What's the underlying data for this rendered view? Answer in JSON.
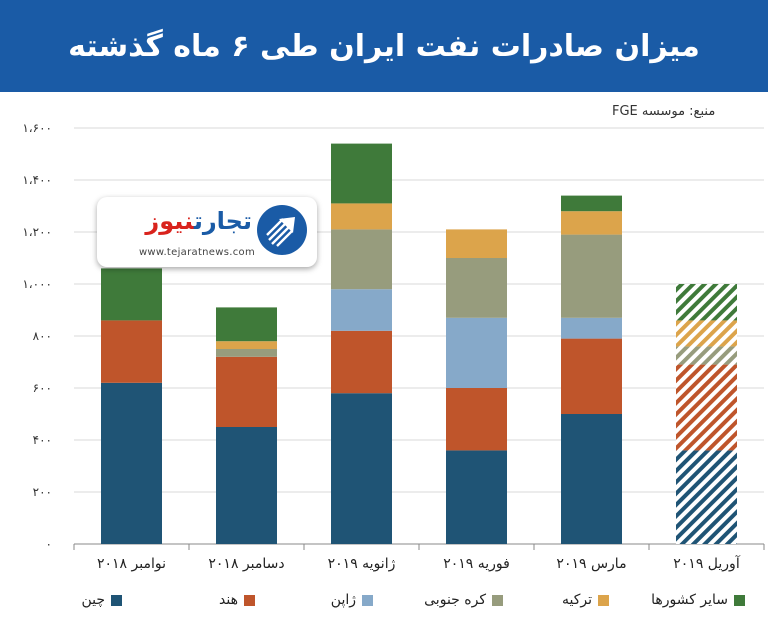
{
  "header": {
    "title": "میزان صادرات نفت ایران طی ۶ ماه گذشته"
  },
  "source": "منبع: موسسه FGE",
  "logo": {
    "name_part1": "تجارت",
    "name_part2": "نیوز",
    "url": "www.tejaratnews.com"
  },
  "colors": {
    "header_bg": "#1a5ba6",
    "china": "#1f5475",
    "india": "#bf552b",
    "japan": "#86a9c9",
    "korea": "#979c7d",
    "turkey": "#dca44b",
    "others": "#3f7a3a"
  },
  "chart_data": {
    "type": "bar",
    "stacked": true,
    "categories": [
      "نوامبر ۲۰۱۸",
      "دسامبر ۲۰۱۸",
      "ژانویه ۲۰۱۹",
      "فوریه ۲۰۱۹",
      "مارس ۲۰۱۹",
      "آوریل ۲۰۱۹"
    ],
    "projected_category": "آوریل ۲۰۱۹",
    "series": [
      {
        "name": "چین",
        "key": "china",
        "values": [
          620,
          450,
          580,
          360,
          500,
          360
        ]
      },
      {
        "name": "هند",
        "key": "india",
        "values": [
          240,
          270,
          240,
          240,
          290,
          330
        ]
      },
      {
        "name": "ژاپن",
        "key": "japan",
        "values": [
          0,
          0,
          160,
          270,
          80,
          0
        ]
      },
      {
        "name": "کره جنوبی",
        "key": "korea",
        "values": [
          0,
          30,
          230,
          230,
          320,
          70
        ]
      },
      {
        "name": "ترکیه",
        "key": "turkey",
        "values": [
          0,
          30,
          100,
          110,
          90,
          100
        ]
      },
      {
        "name": "سایر کشورها",
        "key": "others",
        "values": [
          200,
          130,
          230,
          0,
          60,
          140
        ]
      }
    ],
    "ylim": [
      0,
      1600
    ],
    "yticks": [
      0,
      200,
      400,
      600,
      800,
      1000,
      1200,
      1400,
      1600
    ],
    "ytick_labels": [
      "۰",
      "۲۰۰",
      "۴۰۰",
      "۶۰۰",
      "۸۰۰",
      "۱،۰۰۰",
      "۱،۲۰۰",
      "۱،۴۰۰",
      "۱،۶۰۰"
    ],
    "grid": true,
    "legend_position": "bottom"
  }
}
